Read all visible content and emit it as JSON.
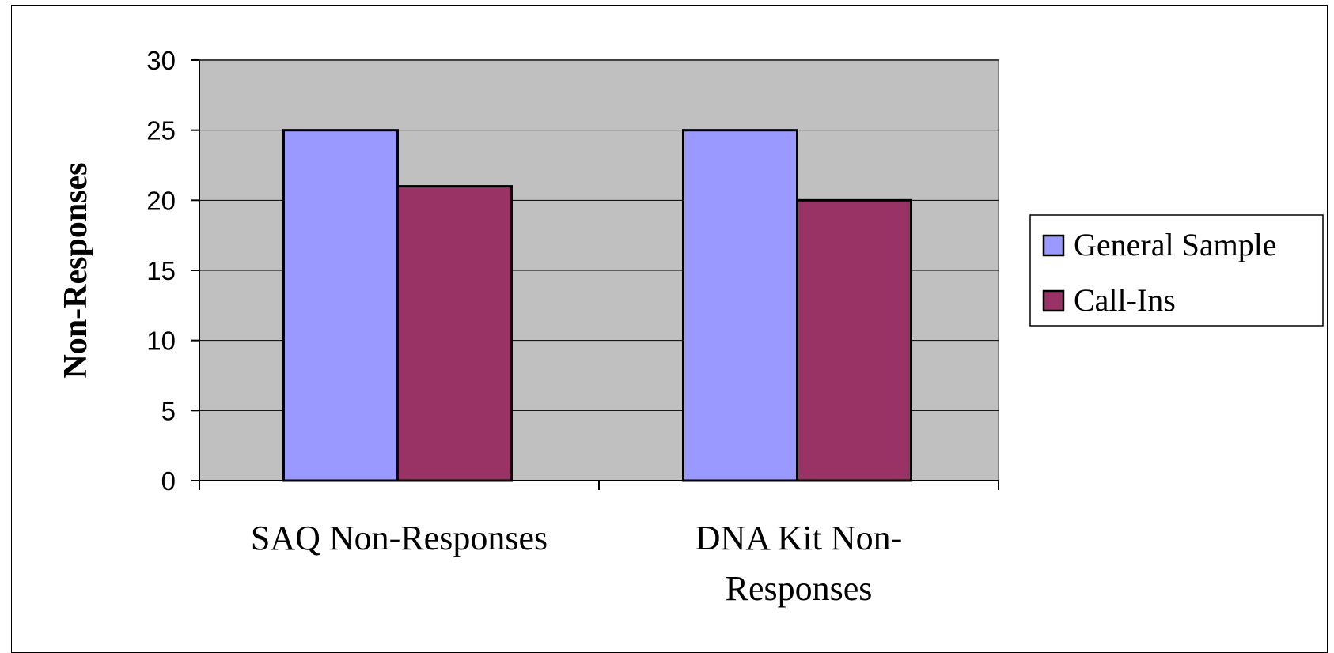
{
  "chart_data": {
    "type": "bar",
    "title": "",
    "xlabel": "",
    "ylabel": "Non-Responses",
    "categories": [
      [
        "SAQ Non-Responses"
      ],
      [
        "DNA Kit Non-",
        "Responses"
      ]
    ],
    "series": [
      {
        "name": "General Sample",
        "values": [
          25,
          25
        ],
        "color": "#9999ff"
      },
      {
        "name": "Call-Ins",
        "values": [
          21,
          20
        ],
        "color": "#993366"
      }
    ],
    "ylim": [
      0,
      30
    ],
    "yticks": [
      0,
      5,
      10,
      15,
      20,
      25,
      30
    ],
    "grid": true,
    "plot_background": "#c0c0c0",
    "legend_position": "right"
  }
}
